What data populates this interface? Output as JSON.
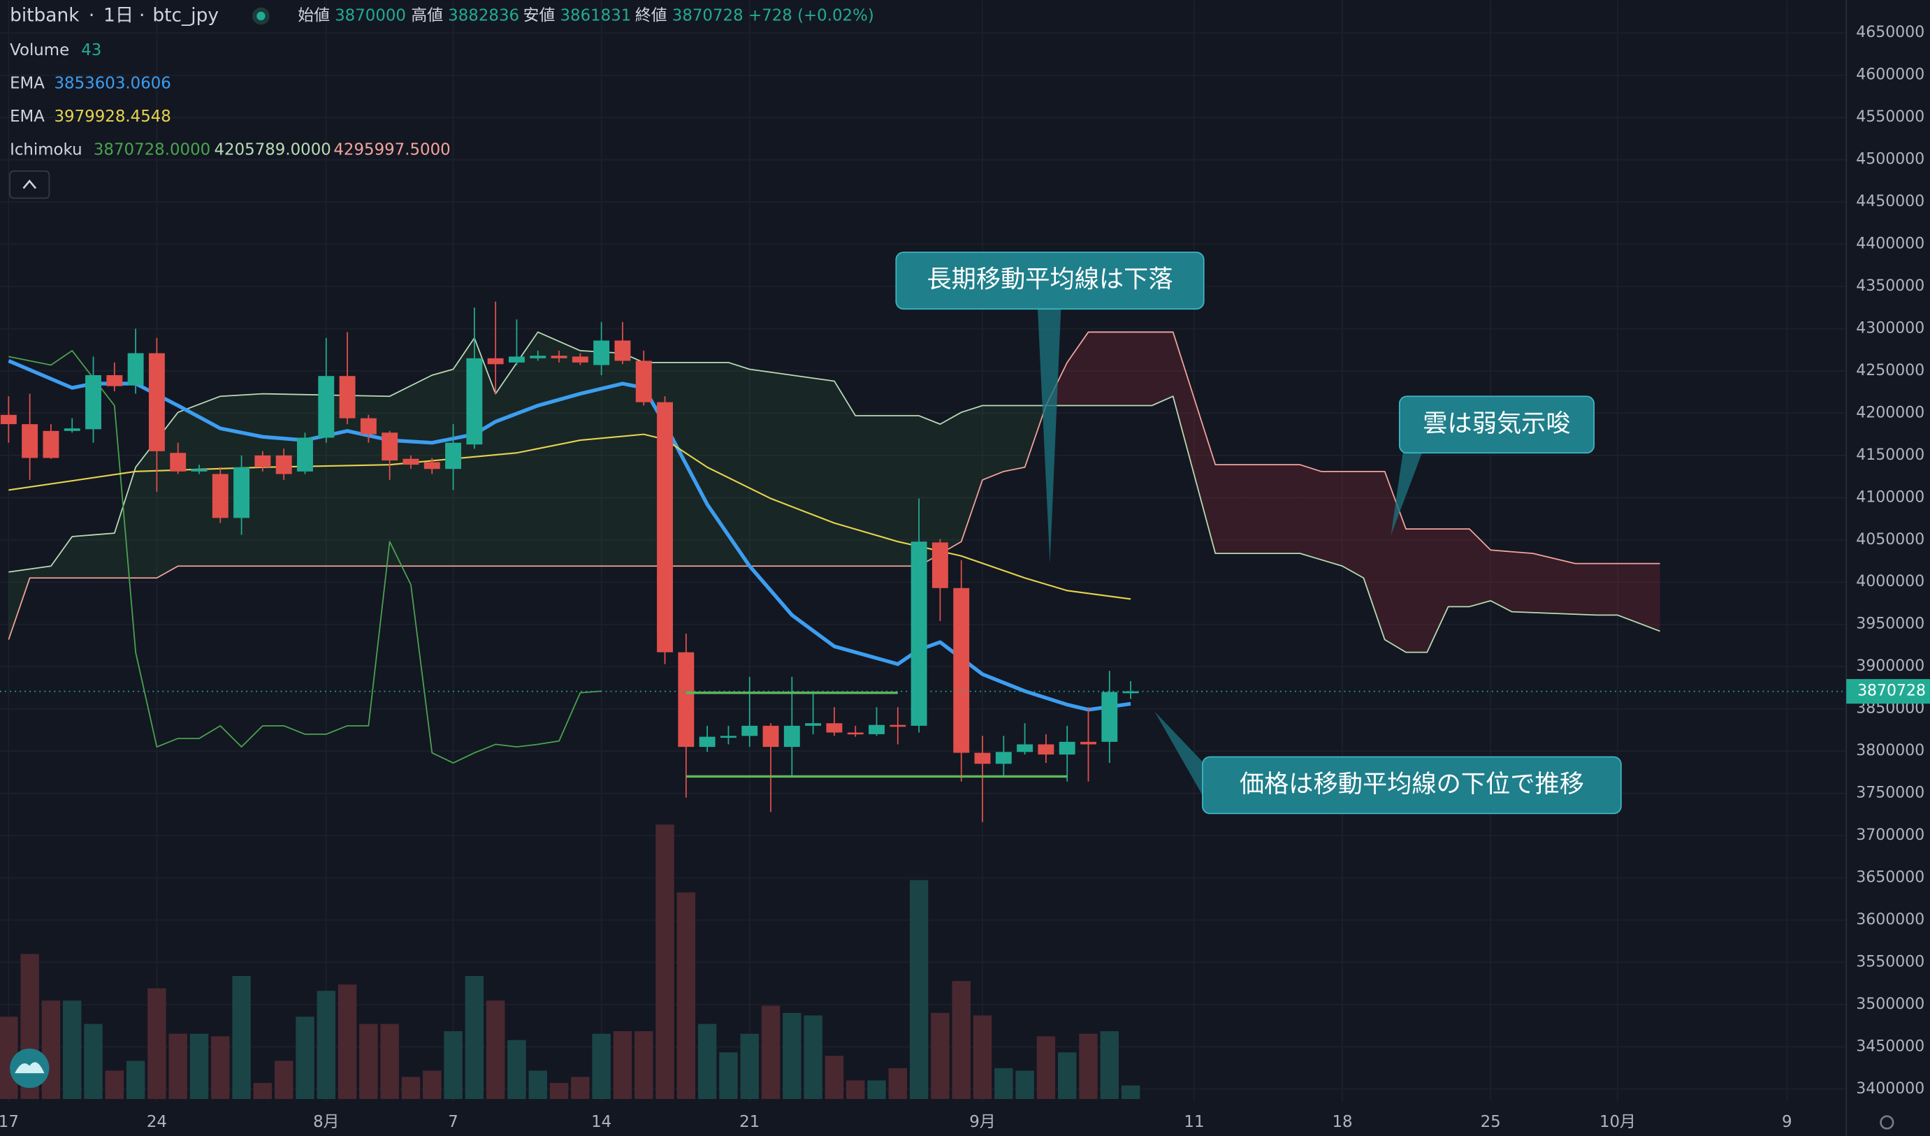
{
  "header": {
    "exchange": "bitbank",
    "interval": "1日",
    "symbol": "btc_jpy",
    "ohlc_labels": [
      "始値",
      "高値",
      "安値",
      "終値"
    ],
    "change": "+728 (+0.02%)"
  },
  "indicators": [
    {
      "label": "Volume"
    },
    {
      "label": "EMA",
      "values": [
        "3853603.0606"
      ]
    },
    {
      "label": "EMA",
      "values": [
        "3979928.4548"
      ]
    },
    {
      "label": "Ichimoku",
      "values": [
        "3870728.0000",
        "4205789.0000",
        "4295997.5000"
      ]
    }
  ],
  "annotations": [
    "長期移動平均線は下落",
    "雲は弱気示唆",
    "価格は移動平均線の下位で推移"
  ],
  "chart_data": {
    "type": "candlestick",
    "categories": [
      "07-17",
      "07-18",
      "07-19",
      "07-20",
      "07-21",
      "07-22",
      "07-23",
      "07-24",
      "07-25",
      "07-26",
      "07-27",
      "07-28",
      "07-29",
      "07-30",
      "07-31",
      "08-01",
      "08-02",
      "08-03",
      "08-04",
      "08-05",
      "08-06",
      "08-07",
      "08-08",
      "08-09",
      "08-10",
      "08-11",
      "08-12",
      "08-13",
      "08-14",
      "08-15",
      "08-16",
      "08-17",
      "08-18",
      "08-19",
      "08-20",
      "08-21",
      "08-22",
      "08-23",
      "08-24",
      "08-25",
      "08-26",
      "08-27",
      "08-28",
      "08-29",
      "08-30",
      "08-31",
      "09-01",
      "09-02",
      "09-03",
      "09-04",
      "09-05",
      "09-06",
      "09-07",
      "09-08"
    ],
    "candles": [
      [
        4198000,
        4220000,
        4165000,
        4187000
      ],
      [
        4187000,
        4223000,
        4121000,
        4147000
      ],
      [
        4179000,
        4187000,
        4146000,
        4147000
      ],
      [
        4179000,
        4194000,
        4177000,
        4182000
      ],
      [
        4181000,
        4267000,
        4165000,
        4245000
      ],
      [
        4245000,
        4260000,
        4226000,
        4232000
      ],
      [
        4233000,
        4300000,
        4223000,
        4271000
      ],
      [
        4271000,
        4289000,
        4107000,
        4155000
      ],
      [
        4153000,
        4165000,
        4128000,
        4131000
      ],
      [
        4131000,
        4139000,
        4128000,
        4134000
      ],
      [
        4128000,
        4136000,
        4070000,
        4076000
      ],
      [
        4076000,
        4150000,
        4056000,
        4136000
      ],
      [
        4150000,
        4155000,
        4131000,
        4136000
      ],
      [
        4150000,
        4158000,
        4121000,
        4128000
      ],
      [
        4131000,
        4177000,
        4128000,
        4171000
      ],
      [
        4171000,
        4289000,
        4165000,
        4244000
      ],
      [
        4244000,
        4296000,
        4187000,
        4194000
      ],
      [
        4194000,
        4198000,
        4165000,
        4175000
      ],
      [
        4177000,
        4179000,
        4121000,
        4144000
      ],
      [
        4146000,
        4150000,
        4134000,
        4139000
      ],
      [
        4142000,
        4147000,
        4128000,
        4134000
      ],
      [
        4134000,
        4187000,
        4109000,
        4165000
      ],
      [
        4163000,
        4325000,
        4158000,
        4265000
      ],
      [
        4265000,
        4332000,
        4223000,
        4258000
      ],
      [
        4260000,
        4311000,
        4257000,
        4267000
      ],
      [
        4265000,
        4274000,
        4262000,
        4268000
      ],
      [
        4268000,
        4274000,
        4260000,
        4265000
      ],
      [
        4267000,
        4271000,
        4257000,
        4260000
      ],
      [
        4257000,
        4308000,
        4245000,
        4286000
      ],
      [
        4286000,
        4308000,
        4258000,
        4262000
      ],
      [
        4262000,
        4274000,
        4209000,
        4213000
      ],
      [
        4213000,
        4220000,
        3903000,
        3917000
      ],
      [
        3917000,
        3939000,
        3745000,
        3805000
      ],
      [
        3805000,
        3830000,
        3799000,
        3817000
      ],
      [
        3817000,
        3830000,
        3808000,
        3818000
      ],
      [
        3818000,
        3888000,
        3805000,
        3830000
      ],
      [
        3830000,
        3833000,
        3728000,
        3805000
      ],
      [
        3805000,
        3888000,
        3771000,
        3830000
      ],
      [
        3830000,
        3871000,
        3820000,
        3833000
      ],
      [
        3833000,
        3852000,
        3818000,
        3822000
      ],
      [
        3822000,
        3830000,
        3817000,
        3820000
      ],
      [
        3820000,
        3852000,
        3818000,
        3831000
      ],
      [
        3831000,
        3852000,
        3808000,
        3830000
      ],
      [
        3830000,
        4099000,
        3822000,
        4048000
      ],
      [
        4047000,
        4051000,
        3954000,
        3993000
      ],
      [
        3993000,
        4026000,
        3764000,
        3798000
      ],
      [
        3798000,
        3818000,
        3716000,
        3785000
      ],
      [
        3785000,
        3818000,
        3771000,
        3799000
      ],
      [
        3799000,
        3833000,
        3796000,
        3808000
      ],
      [
        3808000,
        3820000,
        3786000,
        3796000
      ],
      [
        3796000,
        3830000,
        3764000,
        3811000
      ],
      [
        3811000,
        3852000,
        3764000,
        3808000
      ],
      [
        3811000,
        3895000,
        3786000,
        3870000
      ],
      [
        3870000,
        3882836,
        3861831,
        3870728
      ]
    ],
    "volume": [
      261,
      460,
      312,
      312,
      238,
      90,
      121,
      351,
      207,
      207,
      199,
      390,
      51,
      121,
      261,
      343,
      363,
      238,
      238,
      70,
      90,
      215,
      390,
      312,
      187,
      90,
      51,
      70,
      207,
      215,
      215,
      870,
      655,
      238,
      148,
      207,
      296,
      273,
      265,
      137,
      59,
      59,
      98,
      694,
      273,
      374,
      265,
      98,
      90,
      199,
      148,
      207,
      215,
      43
    ],
    "up_color": "#22ab94",
    "down_color": "#e2504b",
    "volume_up_color": "#1b4446",
    "volume_down_color": "#4a2830",
    "emas": [
      {
        "color": "#3d9ef0",
        "x": [
          "07-17",
          "07-20",
          "07-21",
          "07-23",
          "07-25",
          "07-27",
          "07-29",
          "07-31",
          "08-02",
          "08-04",
          "08-06",
          "08-08",
          "08-09",
          "08-11",
          "08-13",
          "08-15",
          "08-16",
          "08-17",
          "08-19",
          "08-21",
          "08-23",
          "08-25",
          "08-27",
          "08-28",
          "08-29",
          "08-30",
          "08-31",
          "09-01",
          "09-03",
          "09-05",
          "09-06",
          "09-08"
        ],
        "values": [
          4262000,
          4230000,
          4235000,
          4235000,
          4209000,
          4182000,
          4172000,
          4168000,
          4179000,
          4168000,
          4165000,
          4175000,
          4190000,
          4209000,
          4223000,
          4235000,
          4230000,
          4187000,
          4092000,
          4019000,
          3961000,
          3924000,
          3910000,
          3903000,
          3920000,
          3929000,
          3910000,
          3891000,
          3871000,
          3855000,
          3849000,
          3856000
        ]
      },
      {
        "color": "#e6d34f",
        "x": [
          "07-17",
          "07-23",
          "07-29",
          "08-04",
          "08-10",
          "08-13",
          "08-16",
          "08-17",
          "08-19",
          "08-22",
          "08-25",
          "08-28",
          "08-31",
          "09-03",
          "09-05",
          "09-08"
        ],
        "values": [
          4109000,
          4131000,
          4136000,
          4139000,
          4153000,
          4168000,
          4175000,
          4169000,
          4136000,
          4099000,
          4070000,
          4048000,
          4031000,
          4005000,
          3990000,
          3980000
        ]
      }
    ],
    "ichimoku": {
      "span_a": {
        "color": "#b9dcb5",
        "x": [
          "07-17",
          "07-19",
          "07-20",
          "07-22",
          "07-23",
          "07-25",
          "07-27",
          "07-29",
          "08-04",
          "08-06",
          "08-07",
          "08-08",
          "08-09",
          "08-11",
          "08-13",
          "08-15",
          "08-16",
          "08-20",
          "08-21",
          "08-25",
          "08-26",
          "08-29",
          "08-30",
          "08-31",
          "09-01",
          "09-05",
          "09-09",
          "09-10",
          "09-12",
          "09-16",
          "09-18",
          "09-19",
          "09-20",
          "09-21",
          "09-22",
          "09-23",
          "09-24",
          "09-25",
          "09-26",
          "09-30",
          "10-01",
          "10-03"
        ],
        "values": [
          4012000,
          4019000,
          4054000,
          4058000,
          4136000,
          4201000,
          4220000,
          4223000,
          4220000,
          4245000,
          4252000,
          4289000,
          4223000,
          4296000,
          4274000,
          4271000,
          4260000,
          4260000,
          4252000,
          4238000,
          4197000,
          4197000,
          4187000,
          4201000,
          4209000,
          4209000,
          4209000,
          4220000,
          4034000,
          4034000,
          4019000,
          4005000,
          3932000,
          3917000,
          3917000,
          3971000,
          3971000,
          3978000,
          3965000,
          3961000,
          3961000,
          3942000
        ]
      },
      "span_b": {
        "color": "#f2a59c",
        "x": [
          "07-17",
          "07-18",
          "07-24",
          "07-25",
          "07-28",
          "08-29",
          "08-31",
          "09-01",
          "09-02",
          "09-03",
          "09-04",
          "09-05",
          "09-06",
          "09-10",
          "09-12",
          "09-16",
          "09-17",
          "09-20",
          "09-21",
          "09-24",
          "09-25",
          "09-27",
          "09-29",
          "10-03"
        ],
        "values": [
          3932000,
          4005000,
          4005000,
          4019000,
          4019000,
          4019000,
          4048000,
          4121000,
          4131000,
          4136000,
          4209000,
          4260000,
          4296000,
          4296000,
          4139000,
          4139000,
          4131000,
          4131000,
          4063000,
          4063000,
          4038000,
          4034000,
          4022000,
          4022000
        ]
      },
      "lagging": {
        "color": "#4aa44e",
        "x": [
          "07-17",
          "07-19",
          "07-20",
          "07-22",
          "07-23",
          "07-24",
          "07-25",
          "07-26",
          "07-27",
          "07-28",
          "07-29",
          "07-30",
          "07-31",
          "08-01",
          "08-02",
          "08-03",
          "08-04",
          "08-05",
          "08-06",
          "08-07",
          "08-08",
          "08-09",
          "08-10",
          "08-11",
          "08-12",
          "08-13",
          "08-14"
        ],
        "values": [
          4267000,
          4257000,
          4274000,
          4209000,
          3917000,
          3805000,
          3815000,
          3815000,
          3830000,
          3805000,
          3830000,
          3830000,
          3820000,
          3820000,
          3830000,
          3830000,
          4048000,
          3997000,
          3798000,
          3786000,
          3798000,
          3808000,
          3805000,
          3808000,
          3812000,
          3869000,
          3871000
        ]
      },
      "cloud_bull_color": "rgba(76,175,80,0.10)",
      "cloud_bear_color": "rgba(242,54,69,0.16)"
    },
    "drawings": {
      "color": "#5fb65a",
      "lines": [
        {
          "x": [
            "08-18",
            "08-28"
          ],
          "values": [
            3869000,
            3869000
          ]
        },
        {
          "x": [
            "08-18",
            "09-05"
          ],
          "values": [
            3770000,
            3770000
          ]
        }
      ]
    },
    "ylim": [
      3378000,
      4689000
    ],
    "yticks": [
      3400000,
      3450000,
      3500000,
      3550000,
      3600000,
      3650000,
      3700000,
      3750000,
      3800000,
      3850000,
      3900000,
      3950000,
      4000000,
      4050000,
      4100000,
      4150000,
      4200000,
      4250000,
      4300000,
      4350000,
      4400000,
      4450000,
      4500000,
      4550000,
      4600000,
      4650000
    ],
    "xticks": [
      {
        "value": "07-17",
        "label": "17"
      },
      {
        "value": "07-24",
        "label": "24"
      },
      {
        "value": "08-01",
        "label": "8月"
      },
      {
        "value": "08-07",
        "label": "7"
      },
      {
        "value": "08-14",
        "label": "14"
      },
      {
        "value": "08-21",
        "label": "21"
      },
      {
        "value": "09-01",
        "label": "9月"
      },
      {
        "value": "09-11",
        "label": "11"
      },
      {
        "value": "09-18",
        "label": "18"
      },
      {
        "value": "09-25",
        "label": "25"
      },
      {
        "value": "10-01",
        "label": "10月"
      },
      {
        "value": "10-09",
        "label": "9"
      }
    ],
    "grid": true
  }
}
